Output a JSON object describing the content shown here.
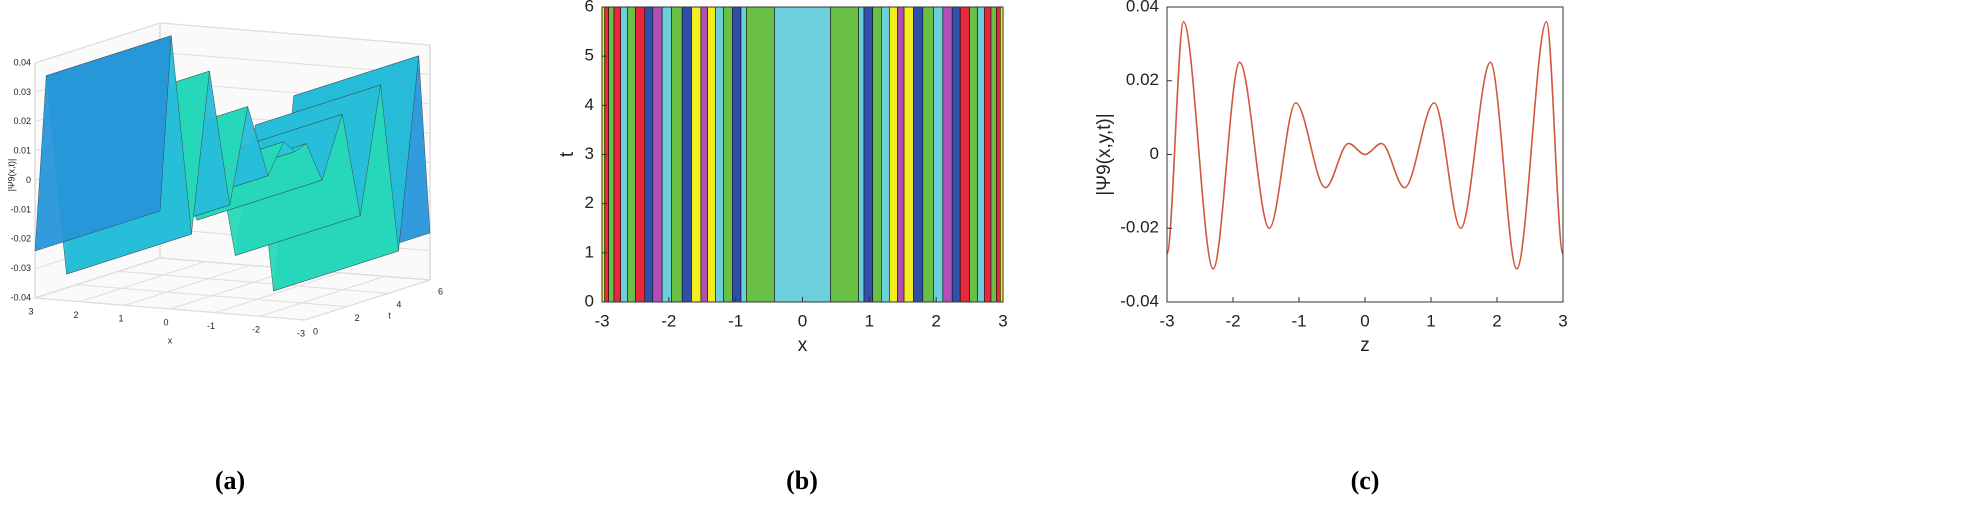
{
  "chart_data": [
    {
      "type": "surface3d",
      "panel_label": "(a)",
      "x_label": "x",
      "t_label": "t",
      "z_label": "|Ψ9(x,t)|",
      "x": [
        -3,
        -2.75,
        -2.3,
        -1.9,
        -1.45,
        -1.05,
        -0.6,
        -0.25,
        0,
        0.25,
        0.6,
        1.05,
        1.45,
        1.9,
        2.3,
        2.75,
        3
      ],
      "values": [
        -0.024,
        0.036,
        -0.031,
        0.025,
        -0.02,
        0.014,
        -0.009,
        0.003,
        0,
        0.003,
        -0.009,
        0.014,
        -0.02,
        0.025,
        -0.031,
        0.036,
        -0.024
      ],
      "xlim": [
        -3,
        3
      ],
      "xticks": [
        3,
        2,
        1,
        0,
        -1,
        -2,
        -3
      ],
      "tlim": [
        0,
        6
      ],
      "tticks": [
        0,
        2,
        4,
        6
      ],
      "zlim": [
        -0.04,
        0.04
      ],
      "zticks": [
        0.04,
        0.03,
        0.02,
        0.01,
        0,
        -0.01,
        -0.02,
        -0.03,
        -0.04
      ]
    },
    {
      "type": "contour",
      "panel_label": "(b)",
      "x_label": "x",
      "y_label": "t",
      "edges": [
        -3,
        -2.96,
        -2.9,
        -2.82,
        -2.72,
        -2.62,
        -2.5,
        -2.36,
        -2.24,
        -2.1,
        -1.96,
        -1.8,
        -1.66,
        -1.52,
        -1.42,
        -1.3,
        -1.18,
        -1.05,
        -0.92,
        -0.84,
        -0.42,
        0.42,
        0.84,
        0.92,
        1.05,
        1.18,
        1.3,
        1.42,
        1.52,
        1.66,
        1.8,
        1.96,
        2.1,
        2.24,
        2.36,
        2.5,
        2.62,
        2.72,
        2.82,
        2.9,
        2.96,
        3
      ],
      "colors": [
        "#f5ee1e",
        "#e8283c",
        "#6abf45",
        "#e8283c",
        "#6ccfdc",
        "#6abf45",
        "#e8283c",
        "#2f50a8",
        "#b24fb4",
        "#6ccfdc",
        "#6abf45",
        "#2f50a8",
        "#f5ee1e",
        "#b24fb4",
        "#f5ee1e",
        "#6ccfdc",
        "#6abf45",
        "#2f50a8",
        "#6ccfdc",
        "#6abf45",
        "#6ccfdc",
        "#6abf45",
        "#6ccfdc",
        "#2f50a8",
        "#6abf45",
        "#6ccfdc",
        "#f5ee1e",
        "#b24fb4",
        "#f5ee1e",
        "#2f50a8",
        "#6abf45",
        "#6ccfdc",
        "#b24fb4",
        "#2f50a8",
        "#e8283c",
        "#6abf45",
        "#6ccfdc",
        "#e8283c",
        "#6abf45",
        "#e8283c",
        "#f5ee1e"
      ],
      "xlim": [
        -3,
        3
      ],
      "xticks": [
        -3,
        -2,
        -1,
        0,
        1,
        2,
        3
      ],
      "ylim": [
        0,
        6
      ],
      "yticks": [
        0,
        1,
        2,
        3,
        4,
        5,
        6
      ]
    },
    {
      "type": "line",
      "panel_label": "(c)",
      "x_label": "z",
      "y_label": "|Ψ9(x,y,t)|",
      "color": "#d0583c",
      "x": [
        -3,
        -2.75,
        -2.3,
        -1.9,
        -1.45,
        -1.05,
        -0.6,
        -0.25,
        0,
        0.25,
        0.6,
        1.05,
        1.45,
        1.9,
        2.3,
        2.75,
        3
      ],
      "values": [
        -0.027,
        0.036,
        -0.031,
        0.025,
        -0.02,
        0.014,
        -0.009,
        0.003,
        0,
        0.003,
        -0.009,
        0.014,
        -0.02,
        0.025,
        -0.031,
        0.036,
        -0.027
      ],
      "xlim": [
        -3,
        3
      ],
      "xticks": [
        -3,
        -2,
        -1,
        0,
        1,
        2,
        3
      ],
      "ylim": [
        -0.04,
        0.04
      ],
      "yticks": [
        -0.04,
        -0.02,
        0,
        0.02,
        0.04
      ]
    }
  ]
}
